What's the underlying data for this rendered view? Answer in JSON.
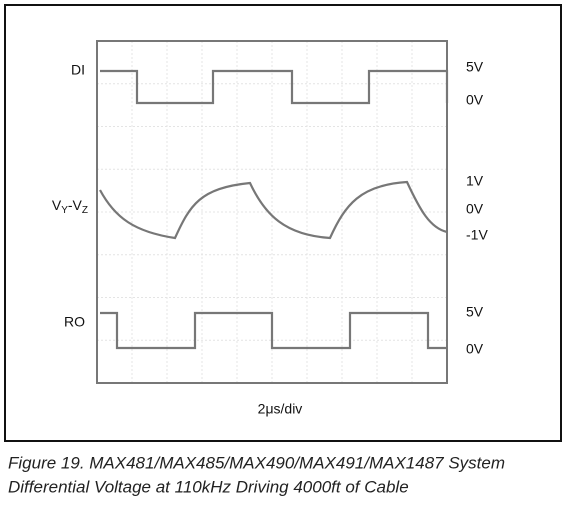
{
  "traces": [
    {
      "label": "DI",
      "levels": [
        "5V",
        "0V"
      ]
    },
    {
      "label_parts": [
        "V",
        "Y",
        "-V",
        "Z"
      ],
      "levels": [
        "1V",
        "0V",
        "-1V"
      ]
    },
    {
      "label": "RO",
      "levels": [
        "5V",
        "0V"
      ]
    }
  ],
  "time_scale": "2μs/div",
  "caption": [
    "Figure 19. MAX481/MAX485/MAX490/MAX491/MAX1487 System",
    "Differential Voltage at 110kHz Driving 4000ft of Cable"
  ]
}
